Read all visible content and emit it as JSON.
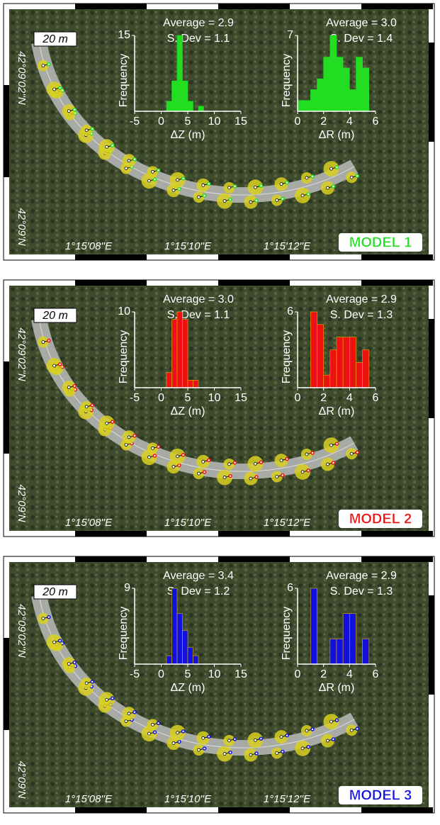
{
  "panels": [
    {
      "model_label": "MODEL 1",
      "color": "#22dd22",
      "scale": "20 m",
      "lat_labels": [
        "42°09'02''N",
        "42°09'N"
      ],
      "lon_labels": [
        "1°15'08''E",
        "1°15'10''E",
        "1°15'12''E"
      ],
      "histograms": [
        {
          "type": "histogram",
          "stats": [
            "Average = 2.9",
            "S. Dev = 1.1"
          ],
          "xlabel": "ΔZ (m)",
          "ylabel": "Frequency",
          "bins": [
            1,
            2,
            3,
            4,
            5,
            6,
            7,
            8
          ],
          "counts": [
            2,
            6,
            15,
            6,
            2,
            0,
            1
          ],
          "xlim": [
            -5,
            15
          ],
          "xticks": [
            -5,
            0,
            5,
            10,
            15
          ],
          "ylim": [
            0,
            15
          ],
          "yticks": [
            15
          ]
        },
        {
          "type": "histogram",
          "stats": [
            "Average = 3.0",
            "S. Dev = 1.4"
          ],
          "xlabel": "ΔR (m)",
          "ylabel": "Frequency",
          "bins": [
            0,
            0.5,
            1,
            1.5,
            2,
            2.5,
            3,
            3.5,
            4,
            4.5,
            5,
            5.5
          ],
          "counts": [
            1,
            1,
            2,
            3,
            5,
            7,
            5,
            4,
            2,
            5,
            4
          ],
          "xlim": [
            0,
            6
          ],
          "xticks": [
            0,
            2,
            4,
            6
          ],
          "ylim": [
            0,
            7
          ],
          "yticks": [
            7
          ]
        }
      ]
    },
    {
      "model_label": "MODEL 2",
      "color": "#ee1111",
      "scale": "20 m",
      "lat_labels": [
        "42°09'02''N",
        "42°09'N"
      ],
      "lon_labels": [
        "1°15'08''E",
        "1°15'10''E",
        "1°15'12''E"
      ],
      "histograms": [
        {
          "type": "histogram",
          "stats": [
            "Average = 3.0",
            "S. Dev = 1.1"
          ],
          "xlabel": "ΔZ (m)",
          "ylabel": "Frequency",
          "bins": [
            1,
            2,
            3,
            4,
            5,
            6,
            7
          ],
          "counts": [
            2,
            9,
            10,
            9,
            1,
            1
          ],
          "xlim": [
            -5,
            15
          ],
          "xticks": [
            -5,
            0,
            5,
            10,
            15
          ],
          "ylim": [
            0,
            10
          ],
          "yticks": [
            10
          ]
        },
        {
          "type": "histogram",
          "stats": [
            "Average = 2.9",
            "S. Dev = 1.3"
          ],
          "xlabel": "ΔR (m)",
          "ylabel": "Frequency",
          "bins": [
            1,
            1.5,
            2,
            2.5,
            3,
            3.5,
            4,
            4.5,
            5,
            5.5
          ],
          "counts": [
            6,
            5,
            1,
            3,
            4,
            4,
            4,
            2,
            3
          ],
          "xlim": [
            0,
            6
          ],
          "xticks": [
            0,
            2,
            4,
            6
          ],
          "ylim": [
            0,
            6
          ],
          "yticks": [
            6
          ]
        }
      ]
    },
    {
      "model_label": "MODEL 3",
      "color": "#1111dd",
      "scale": "20 m",
      "lat_labels": [
        "42°09'02''N",
        "42°09'N"
      ],
      "lon_labels": [
        "1°15'08''E",
        "1°15'10''E",
        "1°15'12''E"
      ],
      "histograms": [
        {
          "type": "histogram",
          "stats": [
            "Average = 3.4",
            "S. Dev = 1.2"
          ],
          "xlabel": "ΔZ (m)",
          "ylabel": "Frequency",
          "bins": [
            1,
            2,
            3,
            4,
            5,
            6,
            7
          ],
          "counts": [
            1,
            9,
            6,
            4,
            2,
            1
          ],
          "xlim": [
            -5,
            15
          ],
          "xticks": [
            -5,
            0,
            5,
            10,
            15
          ],
          "ylim": [
            0,
            9
          ],
          "yticks": [
            9
          ]
        },
        {
          "type": "histogram",
          "stats": [
            "Average = 2.9",
            "S. Dev = 1.3"
          ],
          "xlabel": "ΔR (m)",
          "ylabel": "Frequency",
          "bins": [
            1,
            1.5,
            2,
            2.5,
            3,
            3.5,
            4,
            4.5,
            5,
            5.5
          ],
          "counts": [
            6,
            0,
            0,
            2,
            2,
            4,
            4,
            0,
            2
          ],
          "xlim": [
            0,
            6
          ],
          "xticks": [
            0,
            2,
            4,
            6
          ],
          "ylim": [
            0,
            6
          ],
          "yticks": [
            6
          ]
        }
      ]
    }
  ]
}
